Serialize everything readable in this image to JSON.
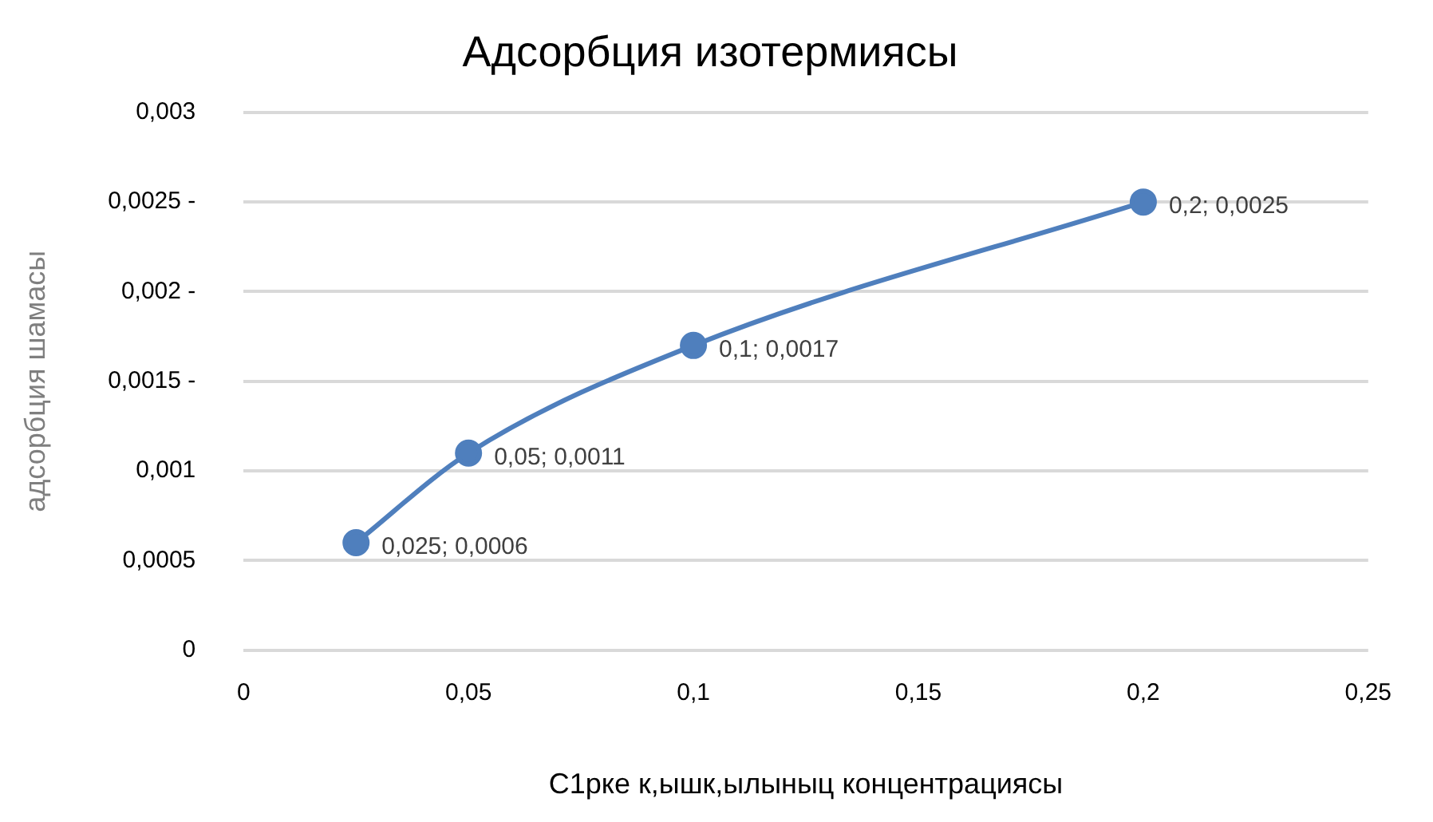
{
  "chart_data": {
    "type": "line",
    "title": "Адсорбция изотермиясы",
    "xlabel": "С1рке к,ышк,ылыныц концентрациясы",
    "ylabel": "адсорбция шамасы",
    "x": [
      0.025,
      0.05,
      0.1,
      0.2
    ],
    "series": [
      {
        "color": "#4f7fbd",
        "values": [
          0.0006,
          0.0011,
          0.0017,
          0.0025
        ],
        "value_labels": [
          "0,025; 0,0006",
          "0,05; 0,0011",
          "0,1; 0,0017",
          "0,2; 0,0025"
        ]
      }
    ],
    "xlim": [
      0,
      0.25
    ],
    "xticks": [
      0,
      {
        "value": 0.05,
        "label": "0,05"
      },
      {
        "value": 0.1,
        "label": "0,1"
      },
      {
        "value": 0.15,
        "label": "0,15"
      },
      {
        "value": 0.2,
        "label": "0,2"
      },
      {
        "value": 0.25,
        "label": "0,25"
      }
    ],
    "ylim": [
      0,
      0.003
    ],
    "yticks": [
      0,
      {
        "value": 0.0005,
        "label": "0,0005"
      },
      {
        "value": 0.001,
        "label": "0,001"
      },
      {
        "value": 0.0015,
        "label": "0,0015 -"
      },
      {
        "value": 0.002,
        "label": "0,002 -"
      },
      {
        "value": 0.0025,
        "label": "0,0025 -"
      },
      {
        "value": 0.003,
        "label": "0,003"
      }
    ],
    "grid": "y",
    "legend": false,
    "marker": "circle",
    "line_style": "solid"
  }
}
